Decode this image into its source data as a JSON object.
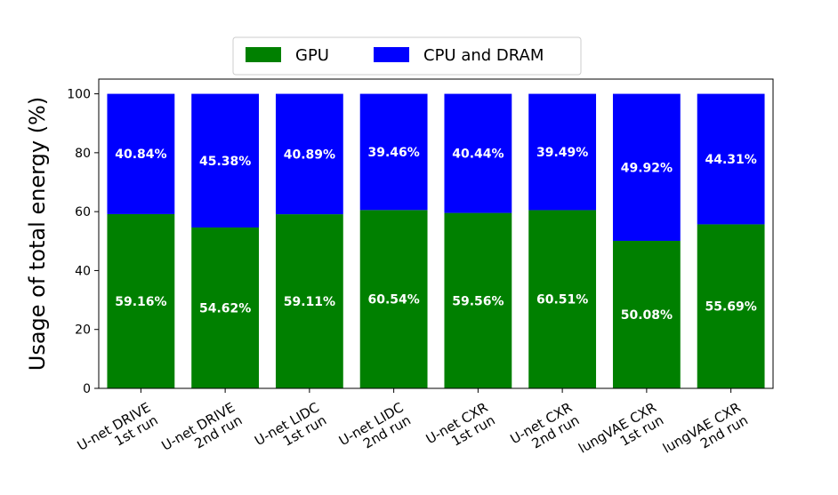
{
  "chart_data": {
    "type": "bar",
    "stacked": true,
    "categories": [
      [
        "U-net DRIVE",
        "1st run"
      ],
      [
        "U-net DRIVE",
        "2nd run"
      ],
      [
        "U-net LIDC",
        "1st run"
      ],
      [
        "U-net LIDC",
        "2nd run"
      ],
      [
        "U-net CXR",
        "1st run"
      ],
      [
        "U-net CXR",
        "2nd run"
      ],
      [
        "lungVAE CXR",
        "1st run"
      ],
      [
        "lungVAE CXR",
        "2nd run"
      ]
    ],
    "series": [
      {
        "name": "GPU",
        "color": "#008000",
        "values": [
          59.16,
          54.62,
          59.11,
          60.54,
          59.56,
          60.51,
          50.08,
          55.69
        ],
        "labels": [
          "59.16%",
          "54.62%",
          "59.11%",
          "60.54%",
          "59.56%",
          "60.51%",
          "50.08%",
          "55.69%"
        ]
      },
      {
        "name": "CPU and DRAM",
        "color": "#0000ff",
        "values": [
          40.84,
          45.38,
          40.89,
          39.46,
          40.44,
          39.49,
          49.92,
          44.31
        ],
        "labels": [
          "40.84%",
          "45.38%",
          "40.89%",
          "39.46%",
          "40.44%",
          "39.49%",
          "49.92%",
          "44.31%"
        ]
      }
    ],
    "ylabel": "Usage of total energy (%)",
    "xlabel": "",
    "ylim": [
      0,
      105
    ],
    "yticks": [
      0,
      20,
      40,
      60,
      80,
      100
    ],
    "grid": false,
    "legend_position": "top-center"
  }
}
